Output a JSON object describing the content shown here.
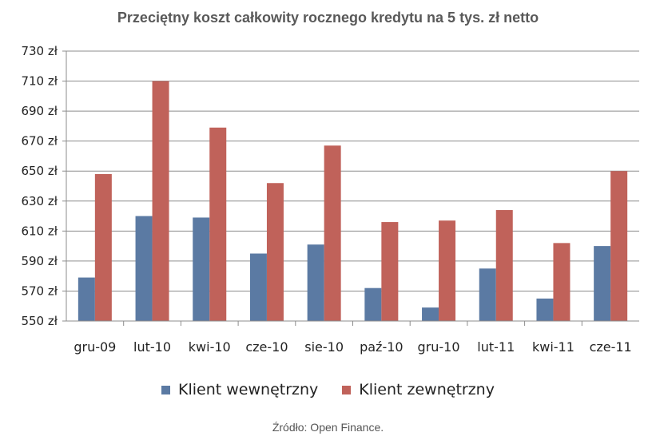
{
  "chart_data": {
    "type": "bar",
    "title": "Przeciętny koszt całkowity rocznego kredytu na 5 tys. zł netto",
    "categories": [
      "gru-09",
      "lut-10",
      "kwi-10",
      "cze-10",
      "sie-10",
      "paź-10",
      "gru-10",
      "lut-11",
      "kwi-11",
      "cze-11"
    ],
    "series": [
      {
        "name": "Klient wewnętrzny",
        "color": "#5b7aa3",
        "values": [
          579,
          620,
          619,
          595,
          601,
          572,
          559,
          585,
          565,
          600
        ]
      },
      {
        "name": "Klient zewnętrzny",
        "color": "#c0625a",
        "values": [
          648,
          710,
          679,
          642,
          667,
          616,
          617,
          624,
          602,
          650
        ]
      }
    ],
    "yticks": [
      "550 zł",
      "570 zł",
      "590 zł",
      "610 zł",
      "630 zł",
      "650 zł",
      "670 zł",
      "690 zł",
      "710 zł",
      "730 zł"
    ],
    "ylim": [
      550,
      730
    ],
    "ystep": 20,
    "grid": true,
    "legend_position": "bottom"
  },
  "source": "Źródło: Open Finance."
}
